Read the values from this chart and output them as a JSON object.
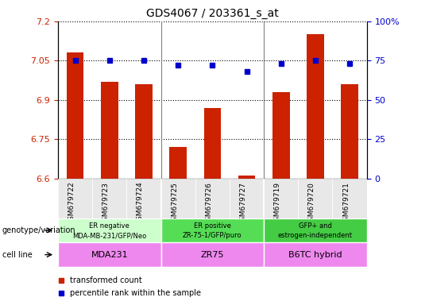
{
  "title": "GDS4067 / 203361_s_at",
  "samples": [
    "GSM679722",
    "GSM679723",
    "GSM679724",
    "GSM679725",
    "GSM679726",
    "GSM679727",
    "GSM679719",
    "GSM679720",
    "GSM679721"
  ],
  "bar_values": [
    7.08,
    6.97,
    6.96,
    6.72,
    6.87,
    6.61,
    6.93,
    7.15,
    6.96
  ],
  "percentile_values": [
    75,
    75,
    75,
    72,
    72,
    68,
    73,
    75,
    73
  ],
  "ylim_left": [
    6.6,
    7.2
  ],
  "ylim_right": [
    0,
    100
  ],
  "yticks_left": [
    6.6,
    6.75,
    6.9,
    7.05,
    7.2
  ],
  "yticks_right": [
    0,
    25,
    50,
    75,
    100
  ],
  "bar_color": "#cc2200",
  "dot_color": "#0000cc",
  "genotype_groups": [
    {
      "label_line1": "ER negative",
      "label_line2": "MDA-MB-231/GFP/Neo",
      "start": 0,
      "end": 3,
      "color": "#ccffcc"
    },
    {
      "label_line1": "ER positive",
      "label_line2": "ZR-75-1/GFP/puro",
      "start": 3,
      "end": 6,
      "color": "#55dd55"
    },
    {
      "label_line1": "GFP+ and",
      "label_line2": "estrogen-independent",
      "start": 6,
      "end": 9,
      "color": "#44cc44"
    }
  ],
  "cellline_groups": [
    {
      "label": "MDA231",
      "start": 0,
      "end": 3,
      "color": "#ee88ee"
    },
    {
      "label": "ZR75",
      "start": 3,
      "end": 6,
      "color": "#ee88ee"
    },
    {
      "label": "B6TC hybrid",
      "start": 6,
      "end": 9,
      "color": "#ee88ee"
    }
  ],
  "genotype_label": "genotype/variation",
  "cellline_label": "cell line",
  "legend_items": [
    {
      "label": "transformed count",
      "color": "#cc2200"
    },
    {
      "label": "percentile rank within the sample",
      "color": "#0000cc"
    }
  ]
}
